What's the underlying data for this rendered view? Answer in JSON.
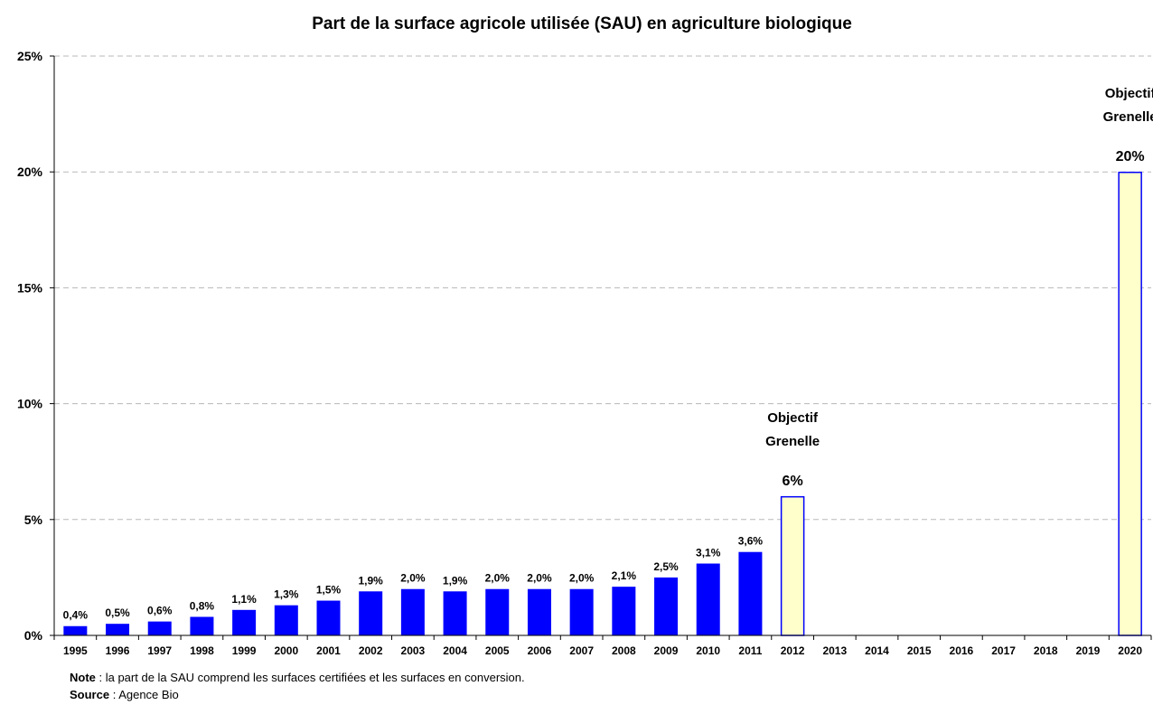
{
  "chart_data": {
    "type": "bar",
    "title": "Part de la surface agricole utilisée (SAU) en agriculture biologique",
    "categories": [
      "1995",
      "1996",
      "1997",
      "1998",
      "1999",
      "2000",
      "2001",
      "2002",
      "2003",
      "2004",
      "2005",
      "2006",
      "2007",
      "2008",
      "2009",
      "2010",
      "2011",
      "2012",
      "2013",
      "2014",
      "2015",
      "2016",
      "2017",
      "2018",
      "2019",
      "2020"
    ],
    "series": [
      {
        "values": [
          0.4,
          0.5,
          0.6,
          0.8,
          1.1,
          1.3,
          1.5,
          1.9,
          2.0,
          1.9,
          2.0,
          2.0,
          2.0,
          2.1,
          2.5,
          3.1,
          3.6,
          null,
          null,
          null,
          null,
          null,
          null,
          null,
          null,
          null
        ],
        "labels": [
          "0,4%",
          "0,5%",
          "0,6%",
          "0,8%",
          "1,1%",
          "1,3%",
          "1,5%",
          "1,9%",
          "2,0%",
          "1,9%",
          "2,0%",
          "2,0%",
          "2,0%",
          "2,1%",
          "2,5%",
          "3,1%",
          "3,6%",
          "",
          "",
          "",
          "",
          "",
          "",
          "",
          "",
          ""
        ],
        "color": "#0000ff"
      },
      {
        "values": [
          null,
          null,
          null,
          null,
          null,
          null,
          null,
          null,
          null,
          null,
          null,
          null,
          null,
          null,
          null,
          null,
          null,
          6,
          null,
          null,
          null,
          null,
          null,
          null,
          null,
          20
        ],
        "labels": [
          "",
          "",
          "",
          "",
          "",
          "",
          "",
          "",
          "",
          "",
          "",
          "",
          "",
          "",
          "",
          "",
          "",
          "6%",
          "",
          "",
          "",
          "",
          "",
          "",
          "",
          "20%"
        ],
        "annotations": [
          "",
          "",
          "",
          "",
          "",
          "",
          "",
          "",
          "",
          "",
          "",
          "",
          "",
          "",
          "",
          "",
          "",
          "Objectif Grenelle",
          "",
          "",
          "",
          "",
          "",
          "",
          "",
          "Objectif Grenelle"
        ],
        "fill": "#ffffcc",
        "stroke": "#0000ff"
      }
    ],
    "yaxis": {
      "min": 0,
      "max": 25,
      "ticks": [
        0,
        5,
        10,
        15,
        20,
        25
      ],
      "tick_labels": [
        "0%",
        "5%",
        "10%",
        "15%",
        "20%",
        "25%"
      ]
    },
    "grid": true,
    "grid_style": "dashed",
    "legend": "none"
  },
  "footnotes": {
    "note_label": "Note",
    "note_text": " : la part de la SAU comprend les surfaces certifiées et les surfaces en conversion.",
    "source_label": "Source",
    "source_text": " : Agence Bio"
  }
}
